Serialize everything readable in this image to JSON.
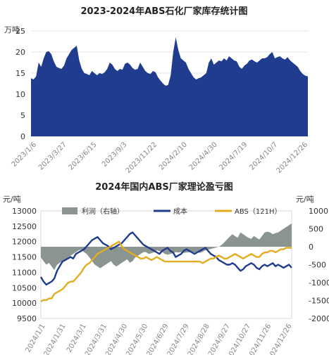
{
  "chart_data": [
    {
      "type": "area",
      "title": "2023-2024年ABS石化厂家库存统计图",
      "ylabel": "万吨",
      "ylim": [
        0,
        25
      ],
      "yticks": [
        "0",
        "5",
        "10",
        "15",
        "20",
        "25"
      ],
      "xticks": [
        "2023/1/6",
        "2023/3/27",
        "2023/6/15",
        "2023/9/3",
        "2023/11/22",
        "2024/2/10",
        "2024/4/30",
        "2024/7/19",
        "2024/10/7",
        "2024/12/26"
      ],
      "color": "#1f3c8e",
      "series": [
        {
          "values": [
            13.8,
            13.5,
            14.2,
            17.5,
            16.5,
            18.5,
            20.0,
            20.2,
            19.5,
            17.8,
            16.5,
            16.2,
            16.0,
            16.8,
            18.5,
            19.5,
            20.5,
            21.0,
            21.5,
            18.0,
            16.0,
            15.0,
            14.8,
            14.5,
            15.5,
            15.0,
            14.5,
            15.0,
            14.8,
            15.2,
            16.0,
            17.5,
            17.0,
            16.0,
            15.5,
            16.0,
            15.8,
            17.2,
            17.5,
            17.0,
            16.2,
            15.8,
            16.0,
            17.5,
            16.5,
            15.5,
            15.0,
            14.8,
            15.5,
            15.2,
            14.0,
            13.2,
            12.5,
            12.0,
            12.2,
            14.5,
            20.0,
            23.5,
            20.5,
            18.5,
            18.0,
            17.5,
            16.0,
            15.0,
            14.0,
            13.5,
            13.8,
            14.0,
            14.5,
            15.0,
            17.5,
            18.5,
            17.0,
            17.5,
            18.0,
            17.8,
            18.5,
            18.0,
            19.0,
            18.5,
            18.0,
            17.8,
            16.5,
            16.0,
            16.8,
            17.2,
            18.0,
            18.2,
            17.8,
            17.5,
            18.0,
            18.5,
            18.5,
            18.8,
            19.5,
            20.0,
            18.5,
            18.8,
            19.0,
            18.5,
            18.2,
            18.8,
            18.0,
            17.5,
            17.0,
            16.5,
            15.5,
            14.8,
            14.4,
            14.2
          ]
        }
      ]
    },
    {
      "type": "line",
      "title": "2024年国内ABS厂家理论盈亏图",
      "ylabel": "元/吨",
      "ylabel_right": "元/吨",
      "ylim": [
        9500,
        13000
      ],
      "ylim_right": [
        -2000,
        1000
      ],
      "yticks": [
        "9500",
        "10000",
        "10500",
        "11000",
        "11500",
        "12000",
        "12500",
        "13000"
      ],
      "yticks_right": [
        "-2000",
        "-1500",
        "-1000",
        "-500",
        "0",
        "500",
        "1000"
      ],
      "xticks": [
        "2024/1/1",
        "2024/1/31",
        "2024/3/1",
        "2024/3/31",
        "2024/4/30",
        "2024/5/30",
        "2024/6/29",
        "2024/7/29",
        "2024/8/28",
        "2024/9/27",
        "2024/10/27",
        "2024/11/26",
        "2024/12/26"
      ],
      "legend_position": "top",
      "series": [
        {
          "name": "利润（右轴）",
          "type": "area",
          "axis": "right",
          "color": "#8a9490",
          "values": [
            -300,
            -400,
            -500,
            -450,
            -550,
            -650,
            -500,
            -450,
            -400,
            -380,
            -300,
            -250,
            -200,
            -150,
            -100,
            -80,
            -150,
            -200,
            -300,
            -400,
            -500,
            -550,
            -600,
            -550,
            -500,
            -450,
            -400,
            -500,
            -550,
            -500,
            -450,
            -400,
            -350,
            -450,
            -400,
            -300,
            -250,
            -200,
            -150,
            -150,
            -200,
            -180,
            -150,
            -100,
            -120,
            -150,
            -200,
            -220,
            -200,
            -180,
            -150,
            -160,
            -150,
            -170,
            -160,
            -150,
            -150,
            -160,
            -150,
            -170,
            -140,
            -100,
            -80,
            -60,
            -40,
            -20,
            0,
            50,
            120,
            200,
            280,
            350,
            300,
            250,
            400,
            350,
            300,
            250,
            220,
            300,
            250,
            200,
            300,
            400,
            420,
            400,
            350,
            380,
            400,
            450,
            500,
            550,
            600,
            650
          ]
        },
        {
          "name": "成本",
          "type": "line",
          "axis": "left",
          "color": "#1f3c8e",
          "values": [
            10850,
            10700,
            10600,
            10650,
            10700,
            10800,
            11050,
            11200,
            11350,
            11400,
            11450,
            11500,
            11450,
            11600,
            11650,
            11700,
            11750,
            11850,
            11950,
            12050,
            12100,
            12150,
            12050,
            11950,
            11900,
            11850,
            11750,
            11800,
            11850,
            11900,
            11950,
            12050,
            12150,
            12250,
            12300,
            12200,
            12100,
            12000,
            11900,
            11850,
            11800,
            11750,
            11700,
            11650,
            11600,
            11700,
            11750,
            11800,
            11700,
            11650,
            11500,
            11550,
            11600,
            11700,
            11750,
            11700,
            11650,
            11600,
            11650,
            11700,
            11750,
            11800,
            11700,
            11600,
            11550,
            11500,
            11400,
            11350,
            11300,
            11250,
            11250,
            11300,
            11250,
            11150,
            11050,
            11100,
            11200,
            11250,
            11300,
            11250,
            11150,
            11100,
            11200,
            11250,
            11200,
            11250,
            11300,
            11200,
            11250,
            11200,
            11150,
            11200,
            11250,
            11150
          ]
        },
        {
          "name": "ABS（121H）",
          "type": "line",
          "axis": "left",
          "color": "#e2ad23",
          "values": [
            10050,
            10100,
            10100,
            10150,
            10150,
            10300,
            10350,
            10400,
            10450,
            10550,
            10650,
            10700,
            10700,
            10800,
            10900,
            11000,
            11150,
            11250,
            11300,
            11400,
            11500,
            11600,
            11650,
            11700,
            11750,
            11800,
            11850,
            11900,
            11950,
            12000,
            11850,
            11750,
            11700,
            11650,
            11600,
            11550,
            11500,
            11450,
            11450,
            11500,
            11450,
            11400,
            11450,
            11500,
            11450,
            11400,
            11350,
            11350,
            11350,
            11350,
            11350,
            11350,
            11350,
            11350,
            11350,
            11350,
            11350,
            11350,
            11350,
            11350,
            11300,
            11350,
            11400,
            11450,
            11450,
            11500,
            11550,
            11500,
            11450,
            11450,
            11500,
            11550,
            11600,
            11550,
            11500,
            11450,
            11500,
            11550,
            11600,
            11550,
            11500,
            11500,
            11600,
            11650,
            11650,
            11700,
            11700,
            11650,
            11700,
            11750,
            11750,
            11800,
            11800,
            11800
          ]
        }
      ]
    }
  ]
}
